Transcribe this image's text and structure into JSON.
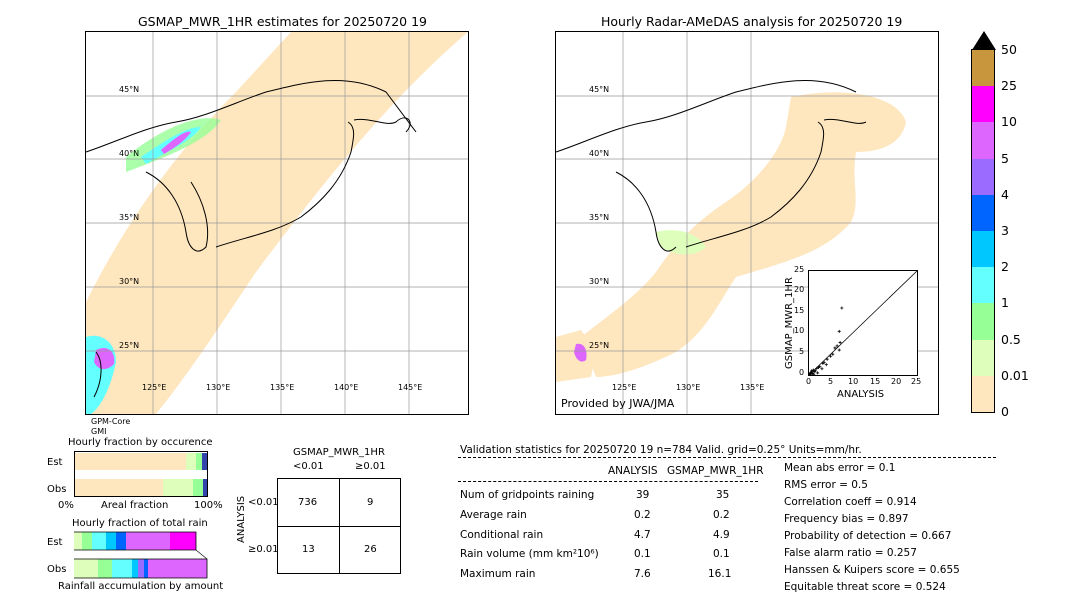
{
  "left_map": {
    "title": "GSMAP_MWR_1HR estimates for 20250720 19",
    "lat_labels": [
      "45°N",
      "40°N",
      "35°N",
      "30°N",
      "25°N"
    ],
    "lon_labels": [
      "125°E",
      "130°E",
      "135°E",
      "140°E",
      "145°E"
    ],
    "footnote_1": "GPM-Core",
    "footnote_2": "GMI"
  },
  "right_map": {
    "title": "Hourly Radar-AMeDAS analysis for 20250720 19",
    "lat_labels": [
      "45°N",
      "40°N",
      "35°N",
      "30°N",
      "25°N"
    ],
    "lon_labels": [
      "125°E",
      "130°E",
      "135°E"
    ],
    "credit": "Provided by JWA/JMA"
  },
  "scatter": {
    "ylabel": "GSMAP_MWR_1HR",
    "xlabel": "ANALYSIS",
    "ticks": [
      "0",
      "5",
      "10",
      "15",
      "20",
      "25"
    ]
  },
  "colorbar": {
    "labels": [
      "50",
      "25",
      "10",
      "5",
      "4",
      "3",
      "2",
      "1",
      "0.5",
      "0.01",
      "0"
    ],
    "colors": [
      "#c8963c",
      "#ff00ff",
      "#dd66ff",
      "#9b6bff",
      "#0064ff",
      "#00c8ff",
      "#64ffff",
      "#96ff96",
      "#ddffbb",
      "#fee6be"
    ]
  },
  "occurrence": {
    "title": "Hourly fraction by occurence",
    "row_est": "Est",
    "row_obs": "Obs",
    "axis_left": "0%",
    "axis_mid": "Areal fraction",
    "axis_right": "100%"
  },
  "total_rain": {
    "title": "Hourly fraction of total rain",
    "row_est": "Est",
    "row_obs": "Obs",
    "axis_label": "Rainfall accumulation by amount"
  },
  "contingency": {
    "title": "GSMAP_MWR_1HR",
    "col_1": "<0.01",
    "col_2": "≥0.01",
    "row_label": "ANALYSIS",
    "row_1": "<0.01",
    "row_2": "≥0.01",
    "c11": "736",
    "c12": "9",
    "c21": "13",
    "c22": "26"
  },
  "validation": {
    "header": "Validation statistics for 20250720 19  n=784 Valid. grid=0.25° Units=mm/hr.",
    "col_analysis": "ANALYSIS",
    "col_gsmap": "GSMAP_MWR_1HR",
    "rows": [
      {
        "label": "Num of gridpoints raining",
        "a": "39",
        "g": "35"
      },
      {
        "label": "Average rain",
        "a": "0.2",
        "g": "0.2"
      },
      {
        "label": "Conditional rain",
        "a": "4.7",
        "g": "4.9"
      },
      {
        "label": "Rain volume (mm km²10⁶)",
        "a": "0.1",
        "g": "0.1"
      },
      {
        "label": "Maximum rain",
        "a": "7.6",
        "g": "16.1"
      }
    ],
    "scores": [
      "Mean abs error =    0.1",
      "RMS error =    0.5",
      "Correlation coeff =  0.914",
      "Frequency bias =  0.897",
      "Probability of detection =  0.667",
      "False alarm ratio =  0.257",
      "Hanssen & Kuipers score =  0.655",
      "Equitable threat score =  0.524"
    ]
  },
  "chart_data": {
    "type": "scatter",
    "xlabel": "ANALYSIS",
    "ylabel": "GSMAP_MWR_1HR",
    "xlim": [
      0,
      25
    ],
    "ylim": [
      0,
      25
    ],
    "points": [
      [
        0.2,
        0.3
      ],
      [
        0.4,
        0.2
      ],
      [
        0.5,
        0.6
      ],
      [
        0.8,
        0.4
      ],
      [
        1.0,
        1.2
      ],
      [
        1.2,
        0.8
      ],
      [
        1.5,
        1.0
      ],
      [
        1.8,
        1.6
      ],
      [
        2.0,
        0.5
      ],
      [
        2.2,
        1.8
      ],
      [
        2.5,
        2.0
      ],
      [
        3.0,
        1.5
      ],
      [
        3.2,
        2.8
      ],
      [
        3.5,
        3.0
      ],
      [
        4.0,
        2.5
      ],
      [
        4.2,
        3.8
      ],
      [
        5.0,
        4.5
      ],
      [
        5.5,
        5.0
      ],
      [
        6.0,
        6.5
      ],
      [
        6.5,
        7.0
      ],
      [
        7.0,
        6.0
      ],
      [
        7.2,
        7.8
      ],
      [
        7.6,
        16.1
      ],
      [
        7.0,
        10.5
      ],
      [
        0.1,
        0.1
      ],
      [
        0.3,
        0.5
      ],
      [
        0.6,
        1.0
      ],
      [
        1.1,
        0.2
      ]
    ]
  }
}
